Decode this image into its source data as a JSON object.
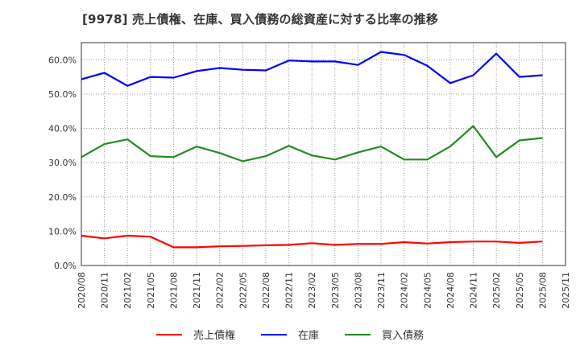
{
  "title": "[9978]  売上債権、在庫、買入債務の総資産に対する比率の推移",
  "chart_data": {
    "type": "line",
    "title": "[9978]  売上債権、在庫、買入債務の総資産に対する比率の推移",
    "xlabel": "",
    "ylabel": "",
    "ylim": [
      0,
      65
    ],
    "yticks": [
      "0.0%",
      "10.0%",
      "20.0%",
      "30.0%",
      "40.0%",
      "50.0%",
      "60.0%"
    ],
    "ytick_values": [
      0,
      10,
      20,
      30,
      40,
      50,
      60
    ],
    "grid": true,
    "legend_position": "bottom",
    "x_tick_labels": [
      "2020/08",
      "2020/11",
      "2021/02",
      "2021/05",
      "2021/08",
      "2021/11",
      "2022/02",
      "2022/05",
      "2022/08",
      "2022/11",
      "2023/02",
      "2023/05",
      "2023/08",
      "2023/11",
      "2024/02",
      "2024/05",
      "2024/08",
      "2024/11",
      "2025/02",
      "2025/05",
      "2025/08",
      "2025/11"
    ],
    "categories": [
      "2020/08",
      "2020/11",
      "2021/02",
      "2021/05",
      "2021/08",
      "2021/11",
      "2022/02",
      "2022/05",
      "2022/08",
      "2022/11",
      "2023/02",
      "2023/05",
      "2023/08",
      "2023/11",
      "2024/02",
      "2024/05",
      "2024/08",
      "2024/11",
      "2025/02",
      "2025/05",
      "2025/08"
    ],
    "series": [
      {
        "name": "売上債権",
        "color": "#ff0000",
        "values": [
          8.7,
          7.9,
          8.7,
          8.4,
          5.3,
          5.3,
          5.6,
          5.7,
          5.9,
          6.0,
          6.5,
          6.0,
          6.3,
          6.3,
          6.8,
          6.4,
          6.8,
          7.0,
          7.0,
          6.6,
          7.0
        ]
      },
      {
        "name": "在庫",
        "color": "#0000ff",
        "values": [
          54.3,
          56.2,
          52.4,
          55.0,
          54.8,
          56.7,
          57.6,
          57.1,
          56.9,
          59.8,
          59.5,
          59.5,
          58.5,
          62.3,
          61.4,
          58.3,
          53.2,
          55.5,
          61.8,
          55.0,
          55.5
        ]
      },
      {
        "name": "買入債務",
        "color": "#228b22",
        "values": [
          31.6,
          35.4,
          36.8,
          31.9,
          31.6,
          34.7,
          32.8,
          30.4,
          31.9,
          34.9,
          32.1,
          30.9,
          33.0,
          34.7,
          30.9,
          30.9,
          34.7,
          40.7,
          31.6,
          36.5,
          37.2
        ]
      }
    ]
  },
  "legend": [
    {
      "label": "売上債権",
      "color": "#ff0000"
    },
    {
      "label": "在庫",
      "color": "#0000ff"
    },
    {
      "label": "買入債務",
      "color": "#228b22"
    }
  ]
}
